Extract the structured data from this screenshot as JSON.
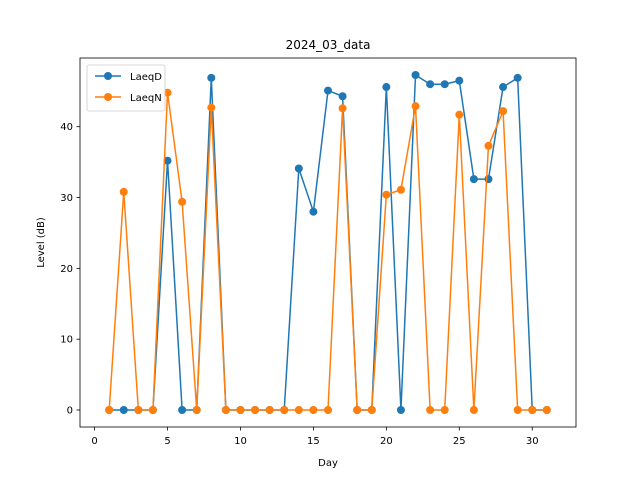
{
  "chart_data": {
    "type": "line",
    "title": "2024_03_data",
    "xlabel": "Day",
    "ylabel": "Level (dB)",
    "xlim": [
      -1,
      33
    ],
    "ylim": [
      -2.4,
      49.7
    ],
    "xticks": [
      0,
      5,
      10,
      15,
      20,
      25,
      30
    ],
    "yticks": [
      0,
      10,
      20,
      30,
      40
    ],
    "grid": false,
    "legend_position": "top-left",
    "x": [
      1,
      2,
      3,
      4,
      5,
      6,
      7,
      8,
      9,
      10,
      11,
      12,
      13,
      14,
      15,
      16,
      17,
      18,
      19,
      20,
      21,
      22,
      23,
      24,
      25,
      26,
      27,
      28,
      29,
      30,
      31
    ],
    "series": [
      {
        "name": "LaeqD",
        "color": "#1f77b4",
        "marker": "circle",
        "values": [
          0,
          0,
          0,
          0,
          35.2,
          0,
          0,
          46.9,
          0,
          0,
          0,
          0,
          0,
          34.1,
          28.0,
          45.1,
          44.3,
          0,
          0,
          45.6,
          0,
          47.3,
          46.0,
          46.0,
          46.5,
          32.6,
          32.6,
          45.6,
          46.9,
          0,
          0
        ]
      },
      {
        "name": "LaeqN",
        "color": "#ff7f0e",
        "marker": "circle",
        "values": [
          0,
          30.8,
          0,
          0,
          44.8,
          29.4,
          0,
          42.7,
          0,
          0,
          0,
          0,
          0,
          0,
          0,
          0,
          42.6,
          0,
          0,
          30.4,
          31.1,
          42.9,
          0,
          0,
          41.7,
          0,
          37.3,
          42.2,
          0,
          0,
          0
        ]
      }
    ]
  }
}
